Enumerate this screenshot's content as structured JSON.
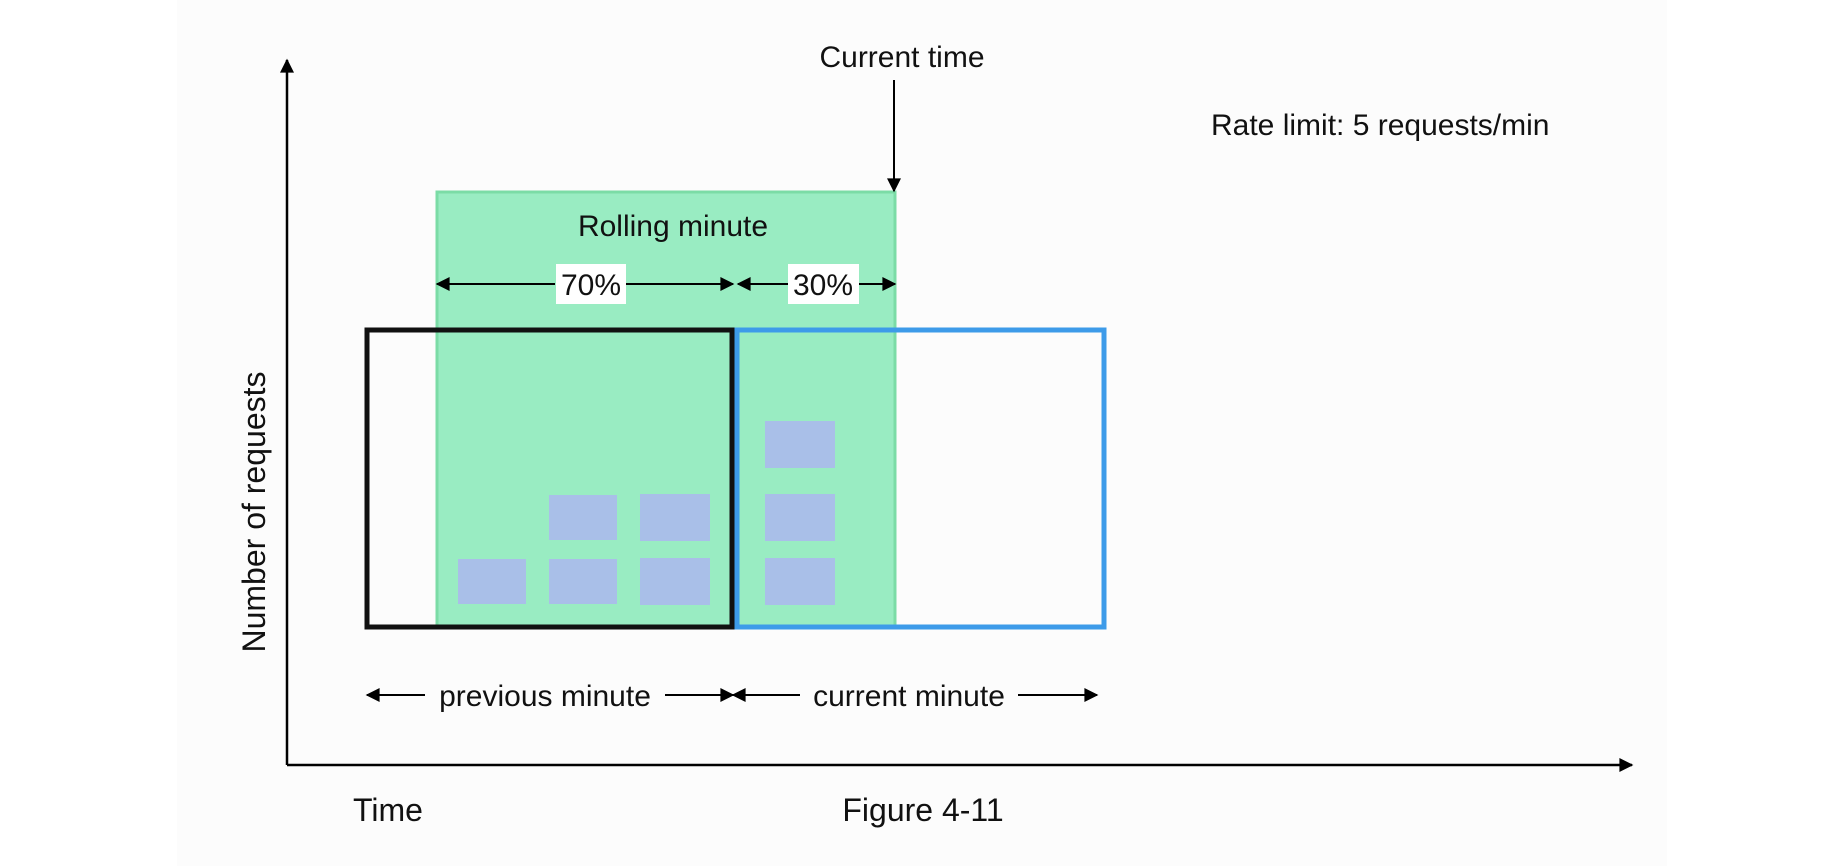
{
  "labels": {
    "current_time": "Current time",
    "rate_limit": "Rate limit: 5 requests/min",
    "rolling_minute": "Rolling minute",
    "pct_previous": "70%",
    "pct_current": "30%",
    "y_axis": "Number of requests",
    "previous_minute": "previous minute",
    "current_minute": "current minute",
    "x_axis": "Time",
    "figure_caption": "Figure 4-11"
  },
  "requests": {
    "previous_minute_count": 5,
    "current_minute_count": 3
  },
  "colors": {
    "rolling_window_fill": "#99ecc2",
    "rolling_window_stroke": "#7bdca6",
    "previous_minute_border": "#111111",
    "current_minute_border": "#3d9be9",
    "request_block": "#a9bfe8"
  }
}
